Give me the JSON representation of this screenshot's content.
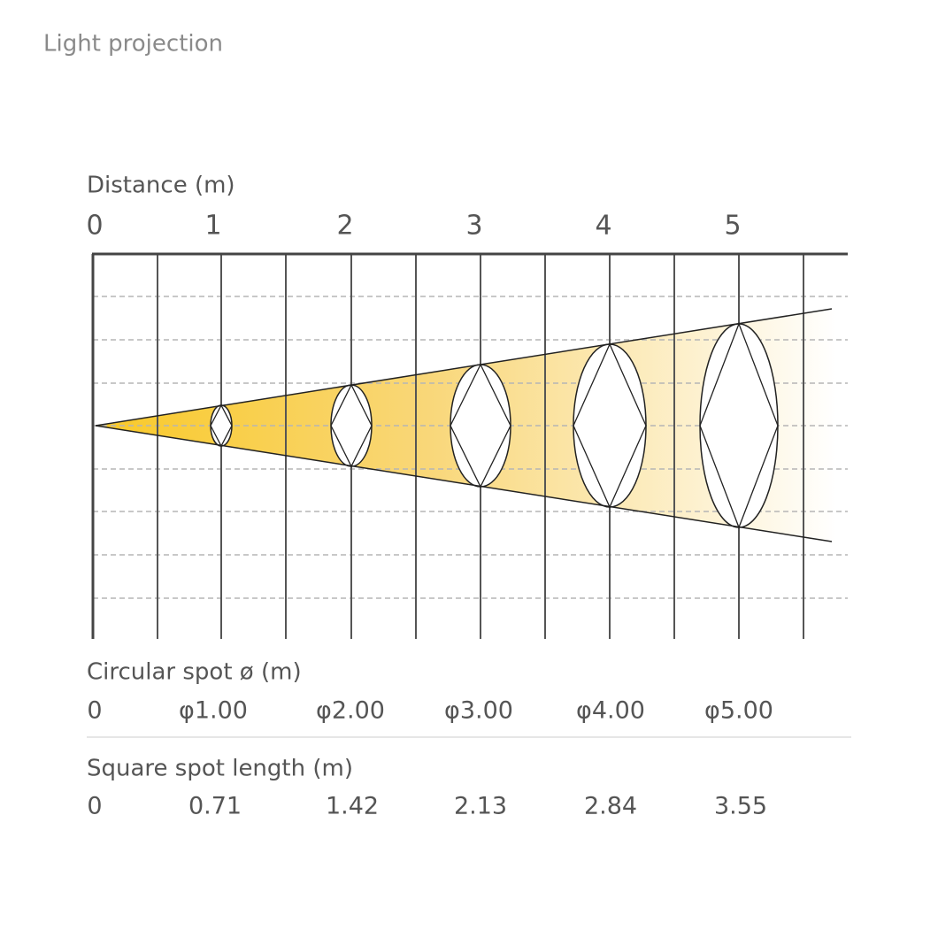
{
  "title": "Light projection",
  "distance": {
    "label": "Distance (m)",
    "ticks": [
      "0",
      "1",
      "2",
      "3",
      "4",
      "5"
    ]
  },
  "circular_spot": {
    "label": "Circular spot ø (m)",
    "values": [
      "0",
      "φ1.00",
      "φ2.00",
      "φ3.00",
      "φ4.00",
      "φ5.00"
    ]
  },
  "square_spot": {
    "label": "Square spot length (m)",
    "values": [
      "0",
      "0.71",
      "1.42",
      "2.13",
      "2.84",
      "3.55"
    ]
  }
}
